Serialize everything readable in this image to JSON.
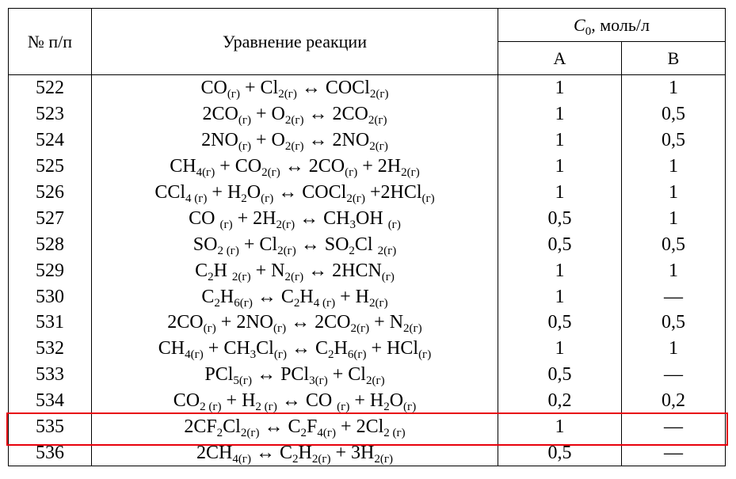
{
  "table": {
    "header": {
      "number": "№ п/п",
      "equation": "Уравнение реакции",
      "concentration": [
        "C",
        "0",
        ", моль/л"
      ],
      "a": "A",
      "b": "B"
    },
    "rows": [
      {
        "number": "522",
        "equation": [
          "CO",
          "(г)",
          " + Cl",
          "2(г)",
          " ↔ COCl",
          "2(г)"
        ],
        "a": "1",
        "b": "1"
      },
      {
        "number": "523",
        "equation": [
          "2CO",
          "(г)",
          " + O",
          "2(г)",
          " ↔ 2CO",
          "2(г)"
        ],
        "a": "1",
        "b": "0,5"
      },
      {
        "number": "524",
        "equation": [
          "2NO",
          "(г)",
          " + O",
          "2(г)",
          " ↔ 2NO",
          "2(г)"
        ],
        "a": "1",
        "b": "0,5"
      },
      {
        "number": "525",
        "equation": [
          "CH",
          "4(г)",
          " + CO",
          "2(г)",
          " ↔ 2CO",
          "(г)",
          " + 2H",
          "2(г)"
        ],
        "a": "1",
        "b": "1"
      },
      {
        "number": "526",
        "equation": [
          "CCl",
          "4 (г)",
          " + H",
          "2",
          "O",
          "(г)",
          " ↔ COCl",
          "2(г)",
          " +2HCl",
          "(г)"
        ],
        "a": "1",
        "b": "1"
      },
      {
        "number": "527",
        "equation": [
          "CO ",
          "(г)",
          " + 2H",
          "2(г)",
          " ↔ CH",
          "3",
          "OH ",
          "(г)"
        ],
        "a": "0,5",
        "b": "1"
      },
      {
        "number": "528",
        "equation": [
          "SO",
          "2 (г)",
          " + Cl",
          "2(г)",
          " ↔ SO",
          "2",
          "Cl ",
          "2(г)"
        ],
        "a": "0,5",
        "b": "0,5"
      },
      {
        "number": "529",
        "equation": [
          "C",
          "2",
          "H ",
          "2(г)",
          " + N",
          "2(г)",
          " ↔ 2HCN",
          "(г)"
        ],
        "a": "1",
        "b": "1"
      },
      {
        "number": "530",
        "equation": [
          "C",
          "2",
          "H",
          "6(г)",
          " ↔ C",
          "2",
          "H",
          "4 (г)",
          " + H",
          "2(г)"
        ],
        "a": "1",
        "b": "—"
      },
      {
        "number": "531",
        "equation": [
          "2CO",
          "(г)",
          " + 2NO",
          "(г)",
          " ↔ 2CO",
          "2(г)",
          " + N",
          "2(г)"
        ],
        "a": "0,5",
        "b": "0,5"
      },
      {
        "number": "532",
        "equation": [
          "CH",
          "4(г)",
          " + CH",
          "3",
          "Cl",
          "(г)",
          " ↔ C",
          "2",
          "H",
          "6(г)",
          " + HCl",
          "(г)"
        ],
        "a": "1",
        "b": "1"
      },
      {
        "number": "533",
        "equation": [
          "PCl",
          "5(г)",
          " ↔ PCl",
          "3(г)",
          " + Cl",
          "2(г)"
        ],
        "a": "0,5",
        "b": "—"
      },
      {
        "number": "534",
        "equation": [
          "CO",
          "2 (г)",
          " + H",
          "2 (г)",
          " ↔ CO ",
          "(г)",
          " + H",
          "2",
          "O",
          "(г)"
        ],
        "a": "0,2",
        "b": "0,2"
      },
      {
        "number": "535",
        "equation": [
          "2CF",
          "2",
          "Cl",
          "2(г)",
          " ↔ C",
          "2",
          "F",
          "4(г)",
          " + 2Cl",
          "2 (г)"
        ],
        "a": "1",
        "b": "—"
      },
      {
        "number": "536",
        "equation": [
          "2CH",
          "4(г)",
          " ↔ C",
          "2",
          "H",
          "2(г)",
          " + 3H",
          "2(г)"
        ],
        "a": "0,5",
        "b": "—"
      }
    ]
  }
}
